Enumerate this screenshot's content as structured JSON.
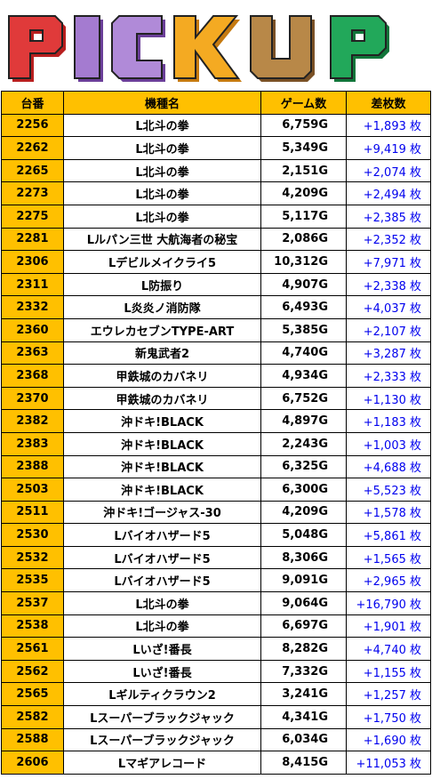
{
  "banner": {
    "title": "PICKUP",
    "colors": [
      "#d42a2a",
      "#9b6cc8",
      "#f1a31b",
      "#f1a31b",
      "#b37738",
      "#1f9a4a"
    ]
  },
  "table": {
    "headers": [
      "台番",
      "機種名",
      "ゲーム数",
      "差枚数"
    ],
    "rows": [
      [
        "2256",
        "L北斗の拳",
        "6,759G",
        "+1,893 枚"
      ],
      [
        "2262",
        "L北斗の拳",
        "5,349G",
        "+9,419 枚"
      ],
      [
        "2265",
        "L北斗の拳",
        "2,151G",
        "+2,074 枚"
      ],
      [
        "2273",
        "L北斗の拳",
        "4,209G",
        "+2,494 枚"
      ],
      [
        "2275",
        "L北斗の拳",
        "5,117G",
        "+2,385 枚"
      ],
      [
        "2281",
        "Lルパン三世 大航海者の秘宝",
        "2,086G",
        "+2,352 枚"
      ],
      [
        "2306",
        "Lデビルメイクライ5",
        "10,312G",
        "+7,971 枚"
      ],
      [
        "2311",
        "L防振り",
        "4,907G",
        "+2,338 枚"
      ],
      [
        "2332",
        "L炎炎ノ消防隊",
        "6,493G",
        "+4,037 枚"
      ],
      [
        "2360",
        "エウレカセブンTYPE-ART",
        "5,385G",
        "+2,107 枚"
      ],
      [
        "2363",
        "新鬼武者2",
        "4,740G",
        "+3,287 枚"
      ],
      [
        "2368",
        "甲鉄城のカバネリ",
        "4,934G",
        "+2,333 枚"
      ],
      [
        "2370",
        "甲鉄城のカバネリ",
        "6,752G",
        "+1,130 枚"
      ],
      [
        "2382",
        "沖ドキ!BLACK",
        "4,897G",
        "+1,183 枚"
      ],
      [
        "2383",
        "沖ドキ!BLACK",
        "2,243G",
        "+1,003 枚"
      ],
      [
        "2388",
        "沖ドキ!BLACK",
        "6,325G",
        "+4,688 枚"
      ],
      [
        "2503",
        "沖ドキ!BLACK",
        "6,300G",
        "+5,523 枚"
      ],
      [
        "2511",
        "沖ドキ!ゴージャス-30",
        "4,209G",
        "+1,578 枚"
      ],
      [
        "2530",
        "Lバイオハザード5",
        "5,048G",
        "+5,861 枚"
      ],
      [
        "2532",
        "Lバイオハザード5",
        "8,306G",
        "+1,565 枚"
      ],
      [
        "2535",
        "Lバイオハザード5",
        "9,091G",
        "+2,965 枚"
      ],
      [
        "2537",
        "L北斗の拳",
        "9,064G",
        "+16,790 枚"
      ],
      [
        "2538",
        "L北斗の拳",
        "6,697G",
        "+1,901 枚"
      ],
      [
        "2561",
        "Lいざ!番長",
        "8,282G",
        "+4,740 枚"
      ],
      [
        "2562",
        "Lいざ!番長",
        "7,332G",
        "+1,155 枚"
      ],
      [
        "2565",
        "Lギルティクラウン2",
        "3,241G",
        "+1,257 枚"
      ],
      [
        "2582",
        "Lスーパーブラックジャック",
        "4,341G",
        "+1,750 枚"
      ],
      [
        "2588",
        "Lスーパーブラックジャック",
        "6,034G",
        "+1,690 枚"
      ],
      [
        "2606",
        "Lマギアレコード",
        "8,415G",
        "+11,053 枚"
      ]
    ],
    "thick_before": [
      8,
      12,
      27
    ]
  }
}
